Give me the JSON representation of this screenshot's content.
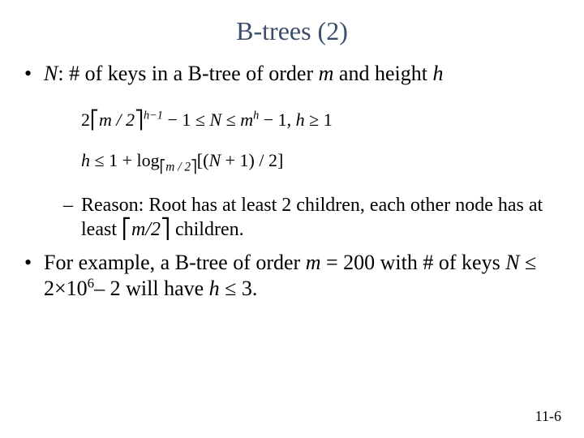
{
  "title": "B-trees (2)",
  "bullets": {
    "b1_prefix": "N",
    "b1_mid": ": # of keys in a  B-tree of order ",
    "b1_m": "m",
    "b1_and": " and height ",
    "b1_h": "h",
    "formula1_a": "2",
    "formula1_ceil_l": "⎡",
    "formula1_m2": "m / 2",
    "formula1_ceil_r": "⎤",
    "formula1_exp": "h−1",
    "formula1_b": " − 1 ≤ ",
    "formula1_N": "N",
    "formula1_c": " ≤ ",
    "formula1_mh_m": "m",
    "formula1_mh_h": "h",
    "formula1_d": " − 1,    ",
    "formula1_hge": "h",
    "formula1_e": " ≥ 1",
    "formula2_h": "h",
    "formula2_a": " ≤ 1 + log",
    "formula2_sub_l": "⎡",
    "formula2_sub_m2": "m / 2",
    "formula2_sub_r": "⎤",
    "formula2_b": "[(",
    "formula2_N": "N",
    "formula2_c": " + 1) / 2]",
    "b2_a": "Reason: Root has at least 2 children, each other node has at least ",
    "b2_ceil_l": "⎡",
    "b2_m2": "m/2",
    "b2_ceil_r": "⎤",
    "b2_b": " children.",
    "b3_a": "For example, a B-tree of order ",
    "b3_m": "m",
    "b3_b": " = 200 with # of keys ",
    "b3_N": "N",
    "b3_c": " ≤ 2×10",
    "b3_exp": "6",
    "b3_d": "– 2 will have ",
    "b3_h": "h",
    "b3_e": " ≤ 3."
  },
  "page": "11-6",
  "colors": {
    "title": "#3b4e6b",
    "text": "#000000",
    "bg": "#ffffff"
  },
  "fonts": {
    "title_size": 32,
    "body_size": 26,
    "sub_size": 24,
    "formula_size": 22,
    "page_size": 18
  }
}
